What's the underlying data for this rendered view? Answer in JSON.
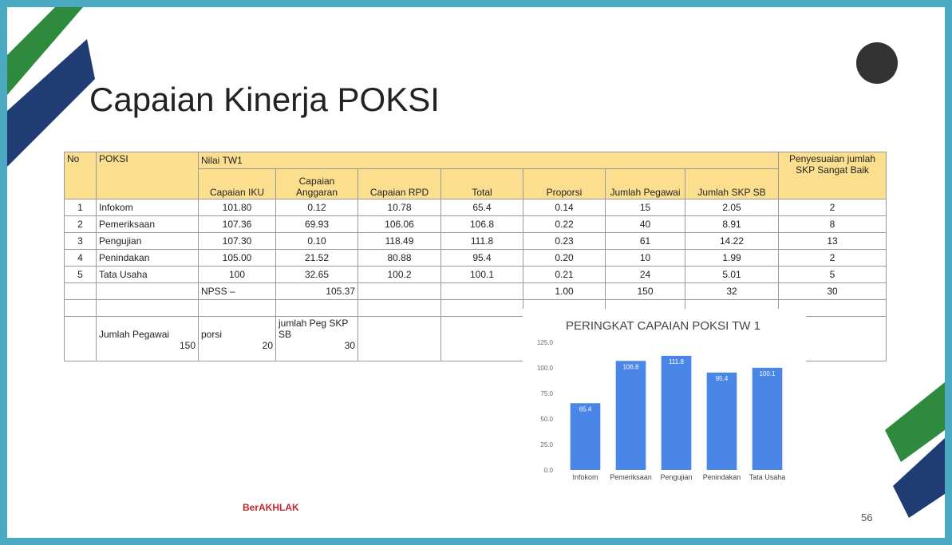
{
  "slide": {
    "title": "Capaian Kinerja POKSI",
    "page_number": "56",
    "footer": "BerAKHLAK"
  },
  "table": {
    "header": {
      "no": "No",
      "poksi": "POKSI",
      "group": "Nilai TW1",
      "last": "Penyesuaian jumlah SKP Sangat Baik",
      "sub": [
        "Capaian IKU",
        "Capaian Anggaran",
        "Capaian RPD",
        "Total",
        "Proporsi",
        "Jumlah Pegawai",
        "Jumlah SKP SB"
      ]
    },
    "rows": [
      [
        "1",
        "Infokom",
        "101.80",
        "0.12",
        "10.78",
        "65.4",
        "0.14",
        "15",
        "2.05",
        "2"
      ],
      [
        "2",
        "Pemeriksaan",
        "107.36",
        "69.93",
        "106.06",
        "106.8",
        "0.22",
        "40",
        "8.91",
        "8"
      ],
      [
        "3",
        "Pengujian",
        "107.30",
        "0.10",
        "118.49",
        "111.8",
        "0.23",
        "61",
        "14.22",
        "13"
      ],
      [
        "4",
        "Penindakan",
        "105.00",
        "21.52",
        "80.88",
        "95.4",
        "0.20",
        "10",
        "1.99",
        "2"
      ],
      [
        "5",
        "Tata Usaha",
        "100",
        "32.65",
        "100.2",
        "100.1",
        "0.21",
        "24",
        "5.01",
        "5"
      ]
    ],
    "summary": {
      "label": "NPSS –",
      "npss": "105.37",
      "proporsi": "1.00",
      "pegawai": "150",
      "skp_sb": "32",
      "penyesuaian": "30"
    },
    "lower": [
      {
        "label": "Jumlah Pegawai",
        "value": "150"
      },
      {
        "label": "porsi",
        "value": "20"
      },
      {
        "label": "jumlah Peg SKP SB",
        "value": "30"
      }
    ]
  },
  "chart_data": {
    "type": "bar",
    "title": "PERINGKAT CAPAIAN POKSI TW 1",
    "categories": [
      "Infokom",
      "Pemeriksaan",
      "Pengujian",
      "Penindakan",
      "Tata Usaha"
    ],
    "values": [
      65.4,
      106.8,
      111.8,
      95.4,
      100.1
    ],
    "color": "#4a86e8",
    "ylim": [
      0,
      125
    ],
    "yticks": [
      {
        "value": 0,
        "label": "0.0"
      },
      {
        "value": 25,
        "label": "25.0"
      },
      {
        "value": 50,
        "label": "50.0"
      },
      {
        "value": 75,
        "label": "75.0"
      },
      {
        "value": 100,
        "label": "100.0"
      },
      {
        "value": 125,
        "label": "125.0"
      }
    ],
    "grid": false
  }
}
